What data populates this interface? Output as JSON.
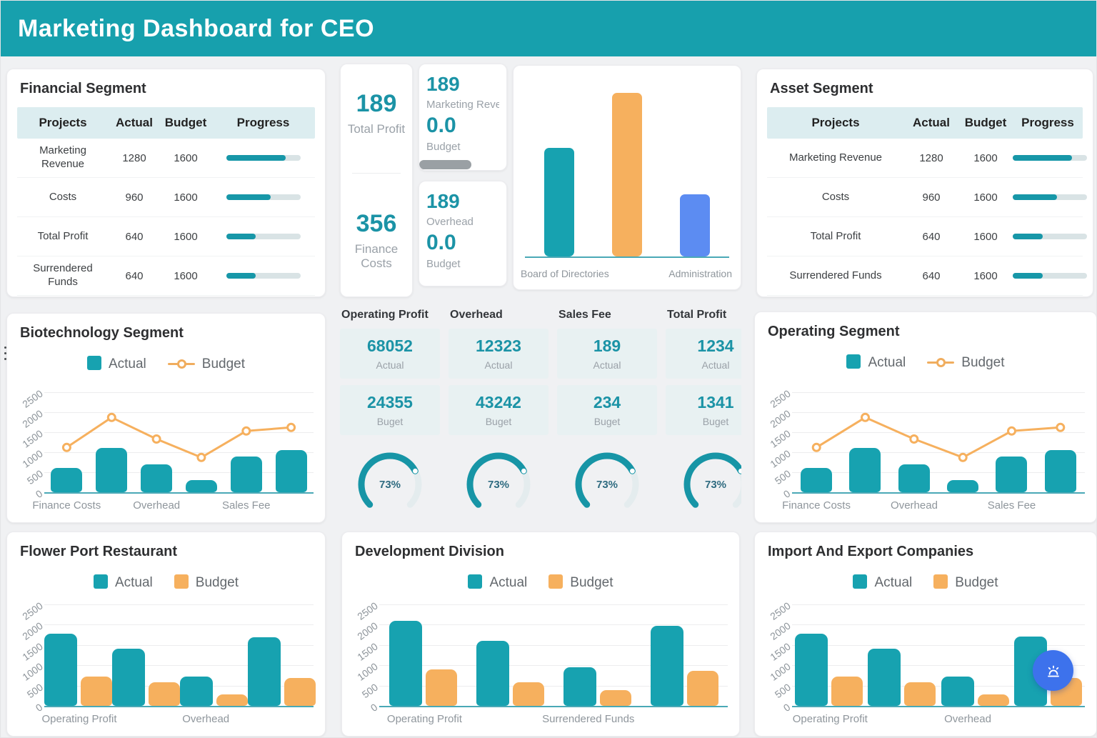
{
  "page": {
    "title": "Marketing Dashboard for CEO"
  },
  "colors": {
    "appbar_teal": "#17a0ad",
    "teal": "#17a2b0",
    "orange": "#f6b05e",
    "blue": "#5c8cf2",
    "teal_text": "#1b93a6",
    "gray_text": "#9aa1a8",
    "gauge_track": "#e4ecee",
    "gauge_fill": "#1795a6",
    "fab_blue": "#3d72ec"
  },
  "financial_segment": {
    "title": "Financial Segment",
    "columns": [
      "Projects",
      "Actual",
      "Budget",
      "Progress"
    ],
    "rows": [
      {
        "project": "Marketing Revenue",
        "actual": "1280",
        "budget": "1600",
        "progress_pct": 80
      },
      {
        "project": "Costs",
        "actual": "960",
        "budget": "1600",
        "progress_pct": 60
      },
      {
        "project": "Total Profit",
        "actual": "640",
        "budget": "1600",
        "progress_pct": 40
      },
      {
        "project": "Surrendered Funds",
        "actual": "640",
        "budget": "1600",
        "progress_pct": 40
      }
    ]
  },
  "asset_segment": {
    "title": "Asset Segment",
    "columns": [
      "Projects",
      "Actual",
      "Budget",
      "Progress"
    ],
    "rows": [
      {
        "project": "Marketing Revenue",
        "actual": "1280",
        "budget": "1600",
        "progress_pct": 80
      },
      {
        "project": "Costs",
        "actual": "960",
        "budget": "1600",
        "progress_pct": 60
      },
      {
        "project": "Total Profit",
        "actual": "640",
        "budget": "1600",
        "progress_pct": 40
      },
      {
        "project": "Surrendered Funds",
        "actual": "640",
        "budget": "1600",
        "progress_pct": 40
      }
    ]
  },
  "profit_cards": {
    "left": [
      {
        "value": "189",
        "label": "Total Profit"
      },
      {
        "value": "356",
        "label": "Finance Costs"
      }
    ],
    "right": [
      {
        "value": "189",
        "label": "Marketing Revenue",
        "secondary": "0.0",
        "secondary_label": "Budget",
        "has_bar": true,
        "bar_pct": 72
      },
      {
        "value": "189",
        "label": "Overhead",
        "secondary": "0.0",
        "secondary_label": "Budget",
        "has_bar": false
      }
    ]
  },
  "kpi_strip": {
    "columns": [
      {
        "title": "Operating Profit",
        "actual": "68052",
        "actual_label": "Actual",
        "budget": "24355",
        "budget_label": "Buget",
        "gauge_pct": 73,
        "gauge_label": "73%"
      },
      {
        "title": "Overhead",
        "actual": "12323",
        "actual_label": "Actual",
        "budget": "43242",
        "budget_label": "Buget",
        "gauge_pct": 73,
        "gauge_label": "73%"
      },
      {
        "title": "Sales Fee",
        "actual": "189",
        "actual_label": "Actual",
        "budget": "234",
        "budget_label": "Buget",
        "gauge_pct": 73,
        "gauge_label": "73%"
      },
      {
        "title": "Total Profit",
        "actual": "1234",
        "actual_label": "Actual",
        "budget": "1341",
        "budget_label": "Buget",
        "gauge_pct": 73,
        "gauge_label": "73%"
      }
    ]
  },
  "chart_data": [
    {
      "id": "departments",
      "type": "bar",
      "title": "",
      "categories": [
        "Board of Directories",
        "",
        "Administration"
      ],
      "values": [
        61,
        92,
        35
      ],
      "units": "relative_pct_estimated_no_axis",
      "bar_colors": [
        "teal",
        "orange",
        "blue"
      ],
      "xlabels_shown": [
        "Board of Directories",
        "Administration"
      ],
      "ylim": [
        0,
        100
      ],
      "grid": false,
      "legend_position": "none"
    },
    {
      "id": "biotechnology",
      "type": "combo_bar_line",
      "title": "Biotechnology Segment",
      "legend": [
        "Actual",
        "Budget"
      ],
      "categories": [
        "Finance Costs",
        "",
        "Overhead",
        "",
        "Sales Fee",
        ""
      ],
      "series": [
        {
          "name": "Actual",
          "type": "bar",
          "values": [
            600,
            1100,
            700,
            300,
            900,
            1050
          ]
        },
        {
          "name": "Budget",
          "type": "line",
          "values": [
            1120,
            1870,
            1330,
            870,
            1530,
            1620
          ]
        }
      ],
      "xlabels_shown": [
        "Finance Costs",
        "Overhead",
        "Sales Fee"
      ],
      "ylim": [
        0,
        2500
      ],
      "yticks": [
        0,
        500,
        1000,
        1500,
        2000,
        2500
      ],
      "grid": true,
      "legend_position": "top"
    },
    {
      "id": "operating",
      "type": "combo_bar_line",
      "title": "Operating Segment",
      "legend": [
        "Actual",
        "Budget"
      ],
      "categories": [
        "Finance Costs",
        "",
        "Overhead",
        "",
        "Sales Fee",
        ""
      ],
      "series": [
        {
          "name": "Actual",
          "type": "bar",
          "values": [
            600,
            1100,
            700,
            300,
            900,
            1050
          ]
        },
        {
          "name": "Budget",
          "type": "line",
          "values": [
            1120,
            1870,
            1330,
            870,
            1530,
            1620
          ]
        }
      ],
      "xlabels_shown": [
        "Finance Costs",
        "Overhead",
        "Sales Fee"
      ],
      "ylim": [
        0,
        2500
      ],
      "yticks": [
        0,
        500,
        1000,
        1500,
        2000,
        2500
      ],
      "grid": true,
      "legend_position": "top"
    },
    {
      "id": "flower_port",
      "type": "grouped_bar",
      "title": "Flower Port Restaurant",
      "legend": [
        "Actual",
        "Budget"
      ],
      "categories": [
        "Operating Profit",
        "",
        "Overhead",
        ""
      ],
      "series": [
        {
          "name": "Actual",
          "values": [
            1780,
            1400,
            730,
            1690
          ]
        },
        {
          "name": "Budget",
          "values": [
            730,
            580,
            290,
            690
          ]
        }
      ],
      "xlabels_shown": [
        "Operating Profit",
        "Overhead"
      ],
      "ylim": [
        0,
        2500
      ],
      "yticks": [
        0,
        500,
        1000,
        1500,
        2000,
        2500
      ],
      "grid": true,
      "legend_position": "top"
    },
    {
      "id": "development",
      "type": "grouped_bar",
      "title": "Development Division",
      "legend": [
        "Actual",
        "Budget"
      ],
      "categories": [
        "Operating Profit",
        "",
        "Surrendered Funds",
        ""
      ],
      "series": [
        {
          "name": "Actual",
          "values": [
            2100,
            1600,
            950,
            1980
          ]
        },
        {
          "name": "Budget",
          "values": [
            900,
            580,
            390,
            860
          ]
        }
      ],
      "xlabels_shown": [
        "Operating Profit",
        "Surrendered Funds"
      ],
      "ylim": [
        0,
        2500
      ],
      "yticks": [
        0,
        500,
        1000,
        1500,
        2000,
        2500
      ],
      "grid": true,
      "legend_position": "top"
    },
    {
      "id": "import_export",
      "type": "grouped_bar",
      "title": "Import And Export Companies",
      "legend": [
        "Actual",
        "Budget"
      ],
      "categories": [
        "Operating Profit",
        "",
        "Overhead",
        ""
      ],
      "series": [
        {
          "name": "Actual",
          "values": [
            1780,
            1400,
            730,
            1700
          ]
        },
        {
          "name": "Budget",
          "values": [
            730,
            580,
            290,
            690
          ]
        }
      ],
      "xlabels_shown": [
        "Operating Profit",
        "Overhead"
      ],
      "ylim": [
        0,
        2500
      ],
      "yticks": [
        0,
        500,
        1000,
        1500,
        2000,
        2500
      ],
      "grid": true,
      "legend_position": "top"
    }
  ],
  "fab": {
    "icon": "alarm-icon"
  }
}
